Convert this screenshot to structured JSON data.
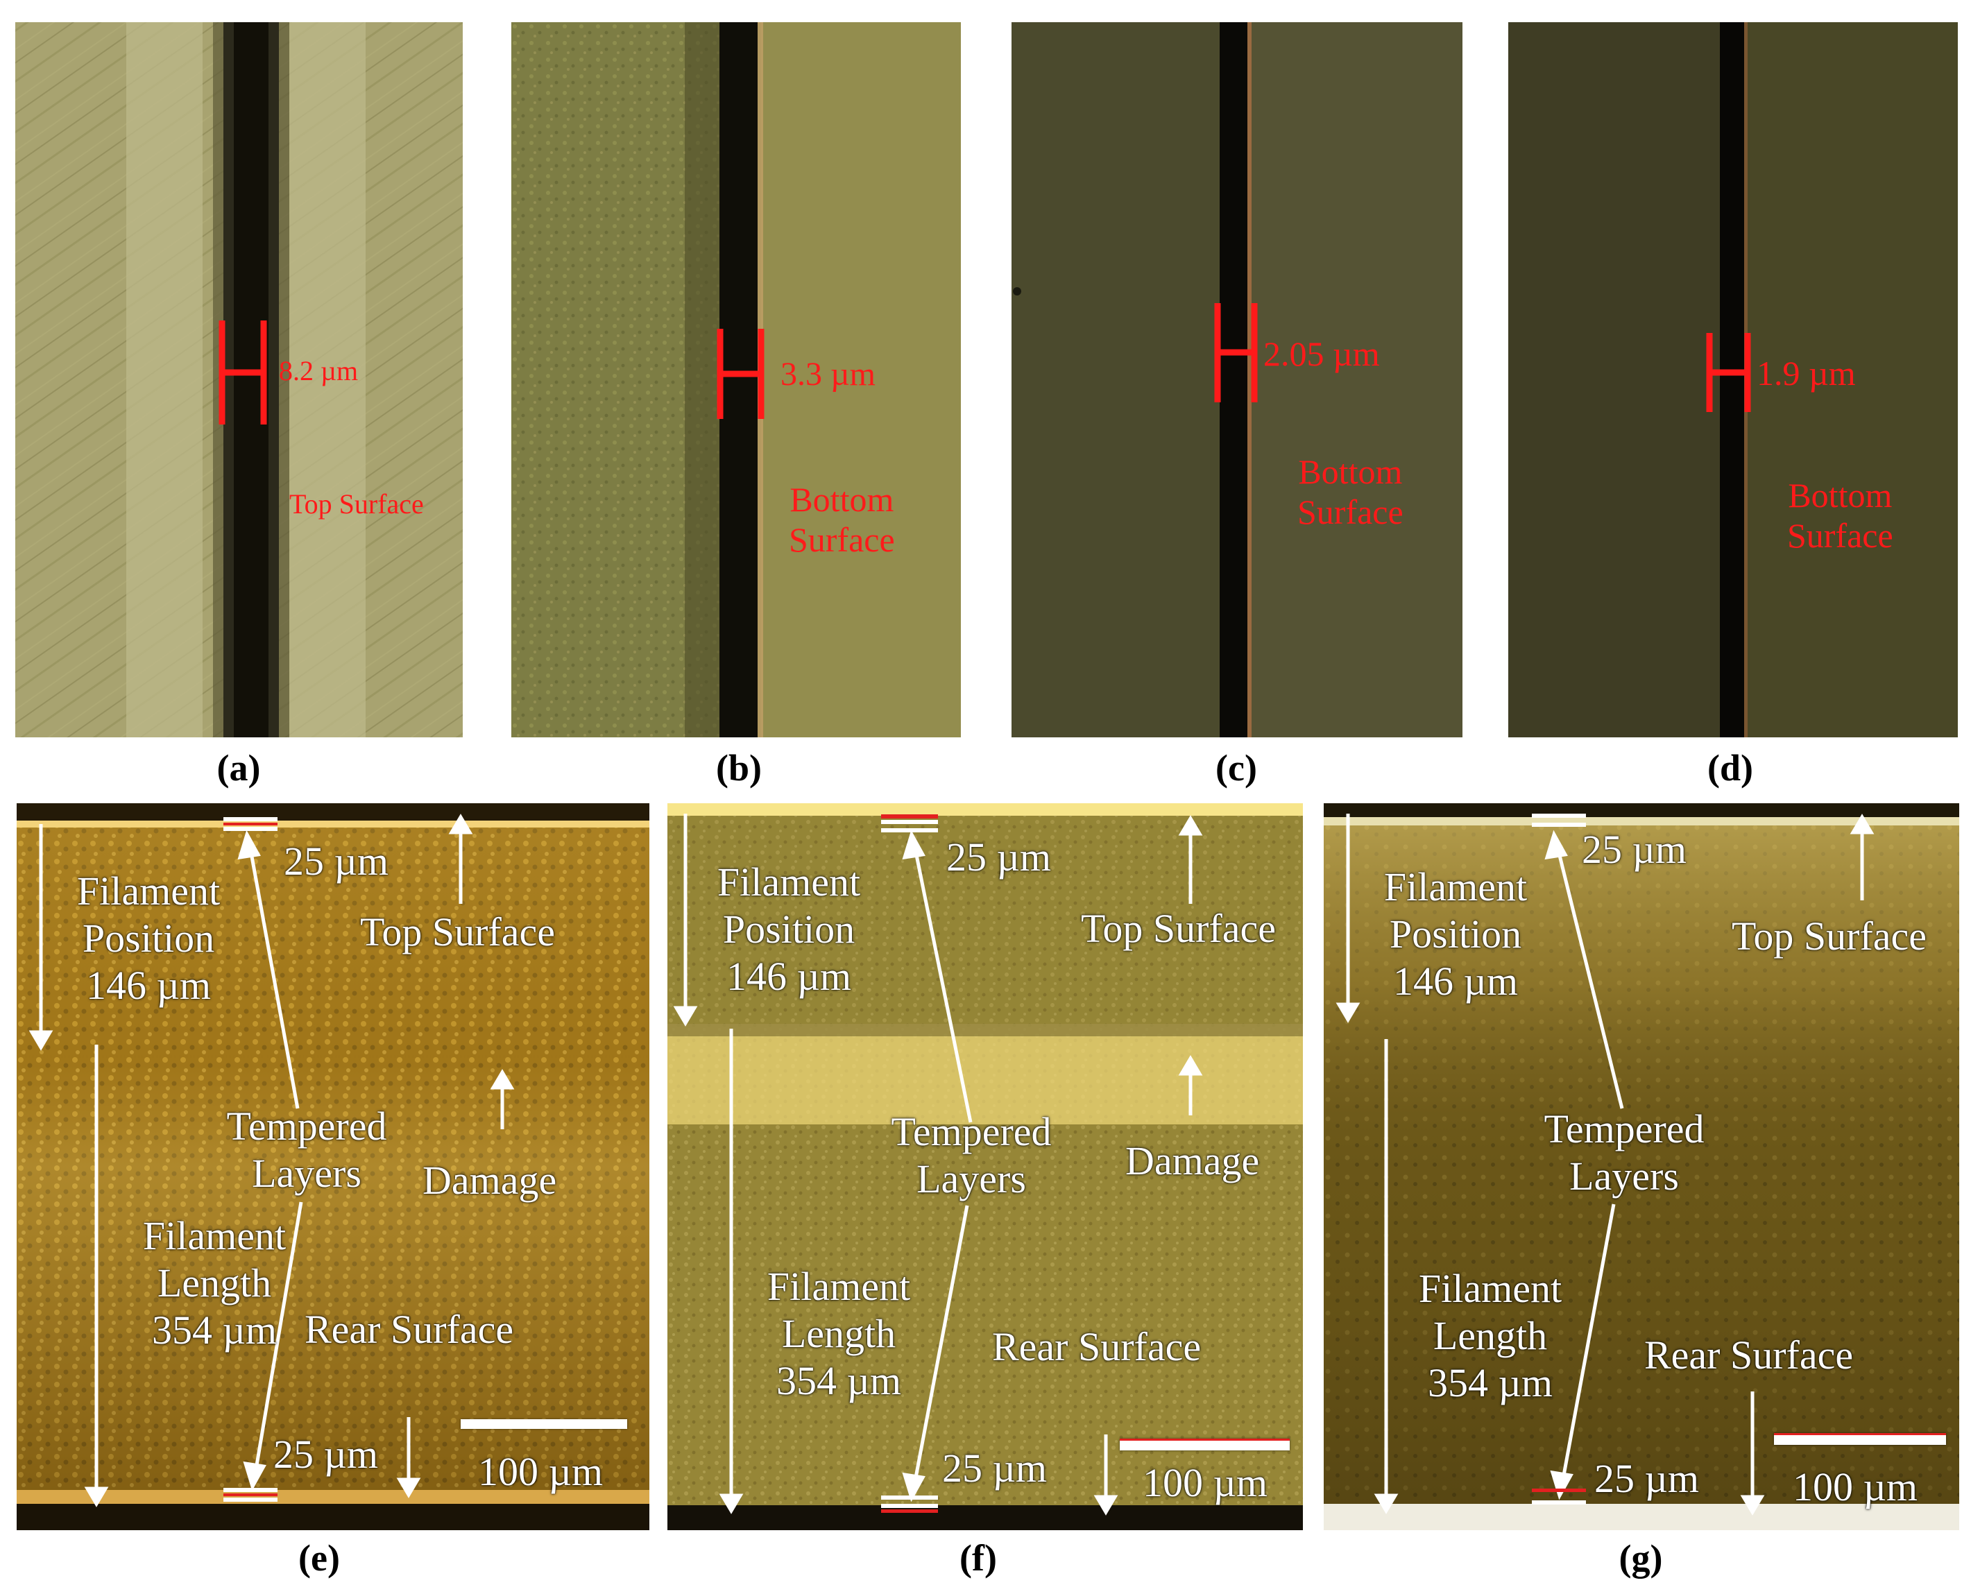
{
  "panels": {
    "a": {
      "caption": "(a)",
      "width_label": "8.2 µm",
      "surface_label": "Top Surface"
    },
    "b": {
      "caption": "(b)",
      "width_label": "3.3 µm",
      "surface_label": "Bottom\nSurface"
    },
    "c": {
      "caption": "(c)",
      "width_label": "2.05 µm",
      "surface_label": "Bottom\nSurface"
    },
    "d": {
      "caption": "(d)",
      "width_label": "1.9 µm",
      "surface_label": "Bottom\nSurface"
    },
    "e": {
      "caption": "(e)",
      "top_layer": "25 µm",
      "filament_position": "Filament\nPosition\n146 µm",
      "top_surface": "Top Surface",
      "tempered": "Tempered\nLayers",
      "damage": "Damage",
      "filament_length": "Filament\nLength\n354 µm",
      "rear_surface": "Rear Surface",
      "bottom_layer": "25 µm",
      "scale": "100 µm"
    },
    "f": {
      "caption": "(f)",
      "top_layer": "25 µm",
      "filament_position": "Filament\nPosition\n146 µm",
      "top_surface": "Top Surface",
      "tempered": "Tempered\nLayers",
      "damage": "Damage",
      "filament_length": "Filament\nLength\n354 µm",
      "rear_surface": "Rear Surface",
      "bottom_layer": "25 µm",
      "scale": "100 µm"
    },
    "g": {
      "caption": "(g)",
      "top_layer": "25 µm",
      "filament_position": "Filament\nPosition\n146 µm",
      "top_surface": "Top Surface",
      "tempered": "Tempered\nLayers",
      "filament_length": "Filament\nLength\n354 µm",
      "rear_surface": "Rear Surface",
      "bottom_layer": "25 µm",
      "scale": "100 µm"
    }
  },
  "colors": {
    "annotation_red": "#ff1a1a",
    "annotation_white": "#ffffff"
  }
}
